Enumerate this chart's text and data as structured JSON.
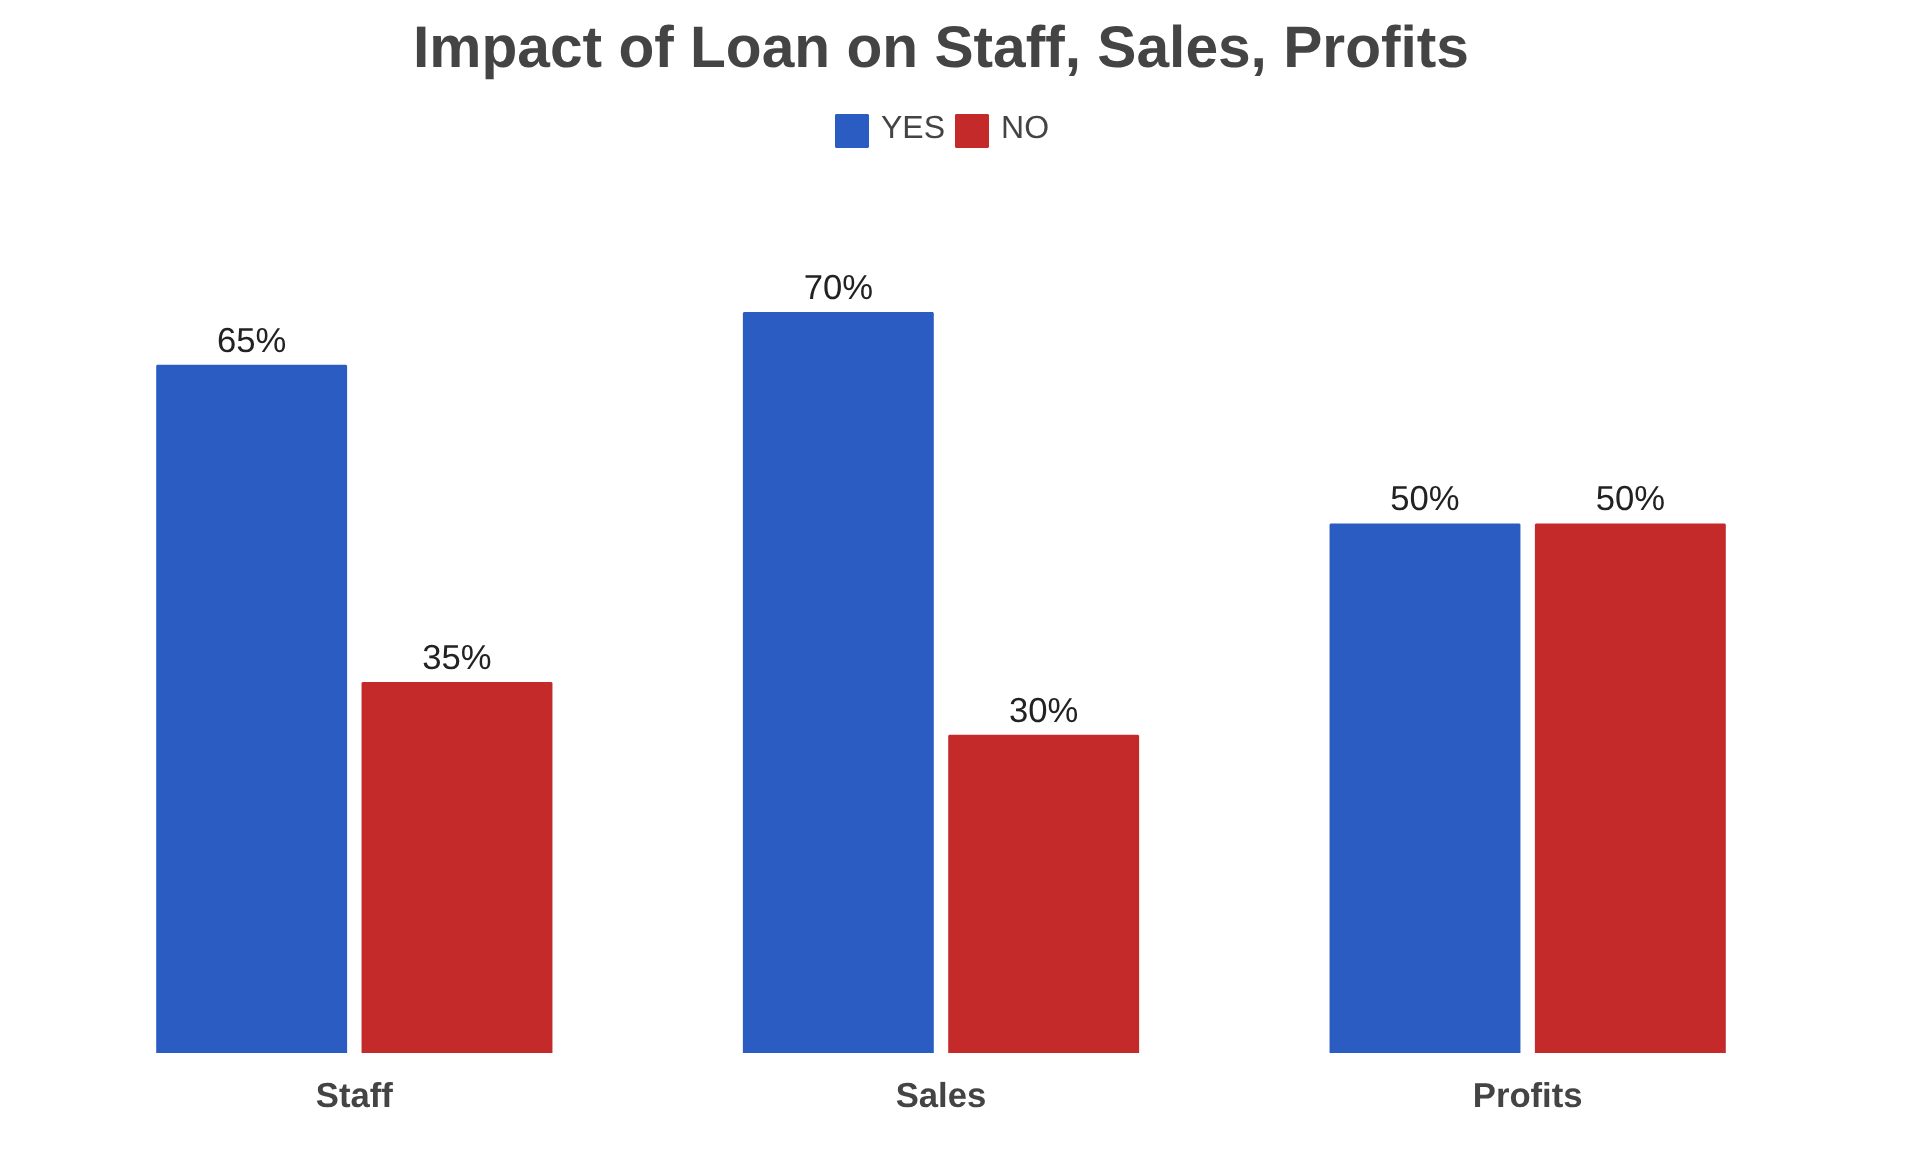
{
  "chart_data": {
    "type": "bar",
    "title": "Impact of Loan on Staff, Sales, Profits",
    "categories": [
      "Staff",
      "Sales",
      "Profits"
    ],
    "series": [
      {
        "name": "YES",
        "color": "#2a5cc2",
        "values": [
          65,
          70,
          50
        ],
        "value_labels": [
          "65%",
          "70%",
          "50%"
        ]
      },
      {
        "name": "NO",
        "color": "#c42a2a",
        "values": [
          35,
          30,
          50
        ],
        "value_labels": [
          "35%",
          "30%",
          "50%"
        ]
      }
    ],
    "legend": "top"
  }
}
